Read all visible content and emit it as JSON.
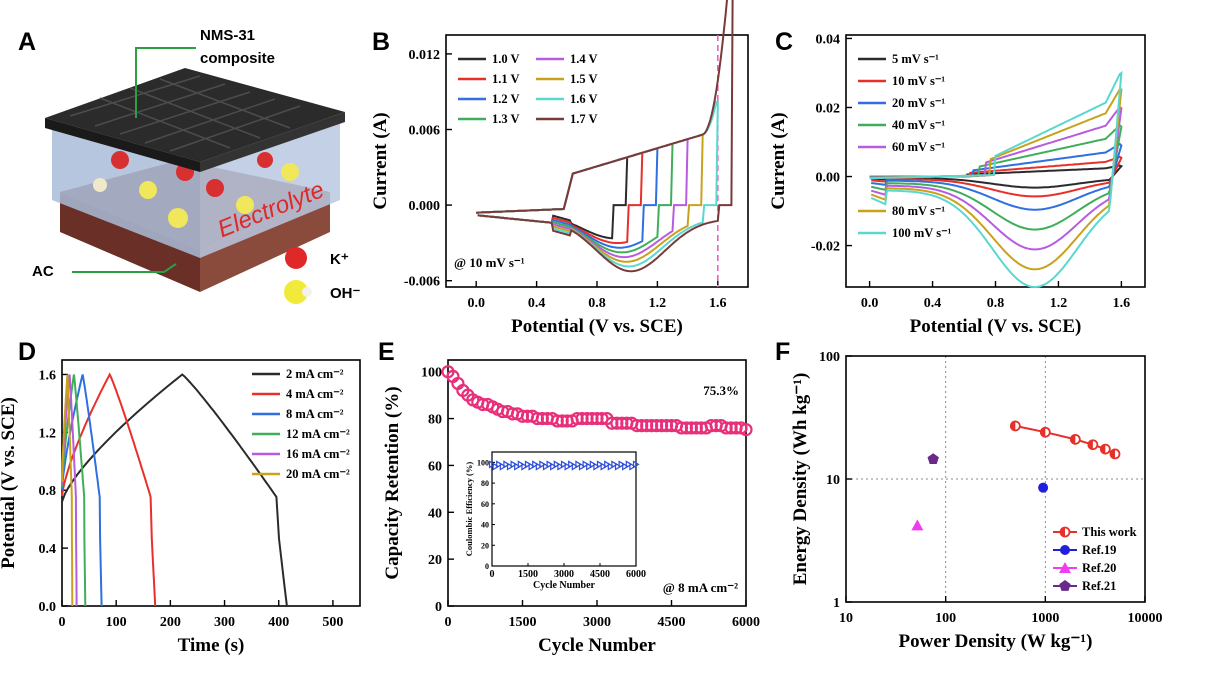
{
  "panels": {
    "A": {
      "label": "A",
      "top_label": "NMS-31\ncomposite",
      "top_label_l1": "NMS-31",
      "top_label_l2": "composite",
      "bottom_label": "AC",
      "electrolyte": "Electrolyte",
      "ion1": "K⁺",
      "ion2": "OH⁻",
      "colors": {
        "cloth": "#2a2a2a",
        "electrolyte": "#b8c8e0",
        "base": "#8a4a3c",
        "k_ion": "#e53030",
        "oh_ion": "#f2ea3a"
      }
    },
    "B": {
      "label": "B"
    },
    "C": {
      "label": "C"
    },
    "D": {
      "label": "D"
    },
    "E": {
      "label": "E"
    },
    "F": {
      "label": "F"
    }
  },
  "chart_data": [
    {
      "panel": "B",
      "type": "line",
      "xlabel": "Potential (V vs. SCE)",
      "ylabel": "Current (A)",
      "xlim": [
        -0.2,
        1.8
      ],
      "ylim": [
        -0.0065,
        0.0135
      ],
      "xticks": [
        "0.0",
        "0.4",
        "0.8",
        "1.2",
        "1.6"
      ],
      "xtick_vals": [
        0,
        0.4,
        0.8,
        1.2,
        1.6
      ],
      "yticks": [
        "-0.006",
        "0.000",
        "0.006",
        "0.012"
      ],
      "ytick_vals": [
        -0.006,
        0,
        0.006,
        0.012
      ],
      "annotation": "@ 10 mV s⁻¹",
      "vline_x": 1.6,
      "series": [
        {
          "name": "1.0 V",
          "vmax": 1.0,
          "color": "#2b2b2b"
        },
        {
          "name": "1.1 V",
          "vmax": 1.1,
          "color": "#e8302a"
        },
        {
          "name": "1.2 V",
          "vmax": 1.2,
          "color": "#2f6fe0"
        },
        {
          "name": "1.3 V",
          "vmax": 1.3,
          "color": "#3fae5a"
        },
        {
          "name": "1.4 V",
          "vmax": 1.4,
          "color": "#b75ce0"
        },
        {
          "name": "1.5 V",
          "vmax": 1.5,
          "color": "#c9a21c"
        },
        {
          "name": "1.6 V",
          "vmax": 1.6,
          "color": "#5ad8d0"
        },
        {
          "name": "1.7 V",
          "vmax": 1.7,
          "color": "#7a3a3a"
        }
      ]
    },
    {
      "panel": "C",
      "type": "line",
      "xlabel": "Potential (V vs. SCE)",
      "ylabel": "Current (A)",
      "xlim": [
        -0.15,
        1.75
      ],
      "ylim": [
        -0.032,
        0.041
      ],
      "xticks": [
        "0.0",
        "0.4",
        "0.8",
        "1.2",
        "1.6"
      ],
      "xtick_vals": [
        0,
        0.4,
        0.8,
        1.2,
        1.6
      ],
      "yticks": [
        "-0.02",
        "0.00",
        "0.02",
        "0.04"
      ],
      "ytick_vals": [
        -0.02,
        0,
        0.02,
        0.04
      ],
      "series": [
        {
          "name": "5 mV s⁻¹",
          "scale": 0.1,
          "color": "#2b2b2b"
        },
        {
          "name": "10 mV s⁻¹",
          "scale": 0.18,
          "color": "#e8302a"
        },
        {
          "name": "20 mV s⁻¹",
          "scale": 0.3,
          "color": "#2f6fe0"
        },
        {
          "name": "40 mV s⁻¹",
          "scale": 0.48,
          "color": "#3fae5a"
        },
        {
          "name": "60 mV s⁻¹",
          "scale": 0.66,
          "color": "#b75ce0"
        },
        {
          "name": "80 mV s⁻¹",
          "scale": 0.84,
          "color": "#c9a21c"
        },
        {
          "name": "100 mV s⁻¹",
          "scale": 1.0,
          "color": "#5ad8d0"
        }
      ]
    },
    {
      "panel": "D",
      "type": "line",
      "xlabel": "Time (s)",
      "ylabel": "Potential (V vs. SCE)",
      "xlim": [
        0,
        550
      ],
      "ylim": [
        0,
        1.7
      ],
      "xticks": [
        "0",
        "100",
        "200",
        "300",
        "400",
        "500"
      ],
      "xtick_vals": [
        0,
        100,
        200,
        300,
        400,
        500
      ],
      "yticks": [
        "0.0",
        "0.4",
        "0.8",
        "1.2",
        "1.6"
      ],
      "ytick_vals": [
        0,
        0.4,
        0.8,
        1.2,
        1.6
      ],
      "series": [
        {
          "name": "2 mA cm⁻²",
          "t_peak": 222,
          "t_end": 415,
          "v0": 0.72,
          "color": "#2b2b2b"
        },
        {
          "name": "4 mA cm⁻²",
          "t_peak": 88,
          "t_end": 172,
          "v0": 0.76,
          "color": "#e8302a"
        },
        {
          "name": "8 mA cm⁻²",
          "t_peak": 38,
          "t_end": 73,
          "v0": 0.8,
          "color": "#2f6fe0"
        },
        {
          "name": "12 mA cm⁻²",
          "t_peak": 22,
          "t_end": 43,
          "v0": 0.82,
          "color": "#3fae5a"
        },
        {
          "name": "16 mA cm⁻²",
          "t_peak": 14,
          "t_end": 27,
          "v0": 0.84,
          "color": "#b75ce0"
        },
        {
          "name": "20 mA cm⁻²",
          "t_peak": 10,
          "t_end": 19,
          "v0": 0.86,
          "color": "#c9a21c"
        }
      ]
    },
    {
      "panel": "E",
      "type": "scatter",
      "xlabel": "Cycle Number",
      "ylabel": "Capacity Retention (%)",
      "xlim": [
        0,
        6000
      ],
      "ylim": [
        0,
        105
      ],
      "xticks": [
        "0",
        "1500",
        "3000",
        "4500",
        "6000"
      ],
      "xtick_vals": [
        0,
        1500,
        3000,
        4500,
        6000
      ],
      "yticks": [
        "0",
        "20",
        "40",
        "60",
        "80",
        "100"
      ],
      "ytick_vals": [
        0,
        20,
        40,
        60,
        80,
        100
      ],
      "annotation_value": "75.3%",
      "annotation_rate": "@ 8 mA cm⁻²",
      "color": "#e8307a",
      "points": [
        [
          0,
          100
        ],
        [
          100,
          98
        ],
        [
          200,
          95
        ],
        [
          300,
          92
        ],
        [
          400,
          90
        ],
        [
          500,
          88
        ],
        [
          600,
          87
        ],
        [
          700,
          86
        ],
        [
          800,
          86
        ],
        [
          900,
          85
        ],
        [
          1000,
          84
        ],
        [
          1100,
          83
        ],
        [
          1200,
          83
        ],
        [
          1300,
          82
        ],
        [
          1400,
          82
        ],
        [
          1500,
          81
        ],
        [
          1600,
          81
        ],
        [
          1700,
          81
        ],
        [
          1800,
          80
        ],
        [
          1900,
          80
        ],
        [
          2000,
          80
        ],
        [
          2100,
          80
        ],
        [
          2200,
          79
        ],
        [
          2300,
          79
        ],
        [
          2400,
          79
        ],
        [
          2500,
          79
        ],
        [
          2600,
          80
        ],
        [
          2700,
          80
        ],
        [
          2800,
          80
        ],
        [
          2900,
          80
        ],
        [
          3000,
          80
        ],
        [
          3100,
          80
        ],
        [
          3200,
          80
        ],
        [
          3300,
          78
        ],
        [
          3400,
          78
        ],
        [
          3500,
          78
        ],
        [
          3600,
          78
        ],
        [
          3700,
          78
        ],
        [
          3800,
          77
        ],
        [
          3900,
          77
        ],
        [
          4000,
          77
        ],
        [
          4100,
          77
        ],
        [
          4200,
          77
        ],
        [
          4300,
          77
        ],
        [
          4400,
          77
        ],
        [
          4500,
          77
        ],
        [
          4600,
          77
        ],
        [
          4700,
          76
        ],
        [
          4800,
          76
        ],
        [
          4900,
          76
        ],
        [
          5000,
          76
        ],
        [
          5100,
          76
        ],
        [
          5200,
          76
        ],
        [
          5300,
          77
        ],
        [
          5400,
          77
        ],
        [
          5500,
          77
        ],
        [
          5600,
          76
        ],
        [
          5700,
          76
        ],
        [
          5800,
          76
        ],
        [
          5900,
          76
        ],
        [
          6000,
          75.3
        ]
      ],
      "inset": {
        "xlabel": "Cycle Number",
        "ylabel": "Coulombic Efficiency (%)",
        "xlim": [
          0,
          6000
        ],
        "ylim": [
          0,
          110
        ],
        "xticks": [
          "0",
          "1500",
          "3000",
          "4500",
          "6000"
        ],
        "xtick_vals": [
          0,
          1500,
          3000,
          4500,
          6000
        ],
        "yticks": [
          "0",
          "20",
          "40",
          "60",
          "80",
          "100"
        ],
        "ytick_vals": [
          0,
          20,
          40,
          60,
          80,
          100
        ],
        "color": "#2f4fd8",
        "value": 98
      }
    },
    {
      "panel": "F",
      "type": "scatter",
      "xlabel": "Power Density (W kg⁻¹)",
      "ylabel": "Energy Density (Wh kg⁻¹)",
      "xscale": "log",
      "yscale": "log",
      "xlim": [
        10,
        10000
      ],
      "ylim": [
        1,
        100
      ],
      "xticks": [
        "10",
        "100",
        "1000",
        "10000"
      ],
      "xtick_vals": [
        10,
        100,
        1000,
        10000
      ],
      "yticks": [
        "1",
        "10",
        "100"
      ],
      "ytick_vals": [
        1,
        10,
        100
      ],
      "grid_x": [
        100,
        1000
      ],
      "grid_y": [
        10
      ],
      "series": [
        {
          "name": "This work",
          "color": "#e8302a",
          "marker": "half-circle",
          "points": [
            [
              500,
              27
            ],
            [
              1000,
              24
            ],
            [
              2000,
              21
            ],
            [
              3000,
              19
            ],
            [
              4000,
              17.5
            ],
            [
              5000,
              16
            ]
          ]
        },
        {
          "name": "Ref.19",
          "color": "#1f1fe0",
          "marker": "circle",
          "points": [
            [
              950,
              8.5
            ]
          ]
        },
        {
          "name": "Ref.20",
          "color": "#f03cf0",
          "marker": "triangle",
          "points": [
            [
              52,
              4.2
            ]
          ]
        },
        {
          "name": "Ref.21",
          "color": "#6a2a8a",
          "marker": "pentagon",
          "points": [
            [
              75,
              14.5
            ]
          ]
        }
      ]
    }
  ]
}
